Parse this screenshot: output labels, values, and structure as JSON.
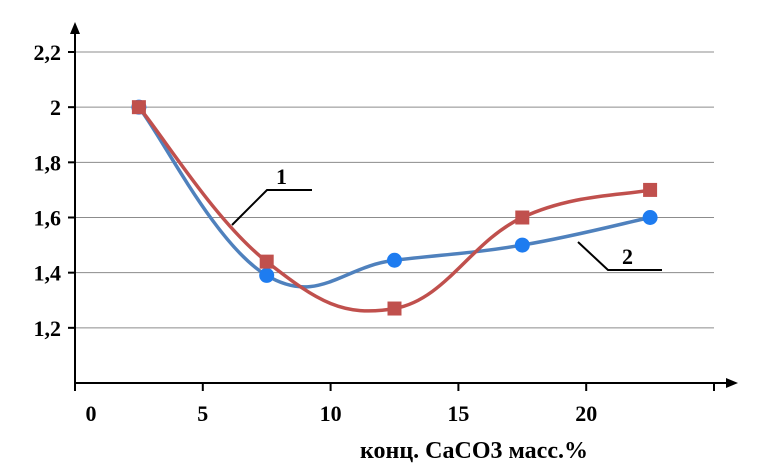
{
  "chart_data": {
    "type": "line",
    "xlabel": "конц. CaCO3 масс.%",
    "ylabel": "",
    "xlim": [
      0,
      25
    ],
    "ylim": [
      1.0,
      2.2
    ],
    "x_ticks": [
      "0",
      "5",
      "10",
      "15",
      "20"
    ],
    "y_ticks": [
      "1,2",
      "1,4",
      "1,6",
      "1,8",
      "2",
      "2,2"
    ],
    "grid": true,
    "series": [
      {
        "name": "1",
        "color": "#c0504d",
        "marker": "square",
        "x": [
          2.5,
          7.5,
          12.5,
          17.5,
          22.5
        ],
        "y": [
          2.0,
          1.44,
          1.27,
          1.6,
          1.7
        ]
      },
      {
        "name": "2",
        "color": "#4f81bd",
        "marker": "circle",
        "x": [
          2.5,
          7.5,
          12.5,
          17.5,
          22.5
        ],
        "y": [
          2.0,
          1.39,
          1.445,
          1.5,
          1.6
        ]
      }
    ]
  }
}
